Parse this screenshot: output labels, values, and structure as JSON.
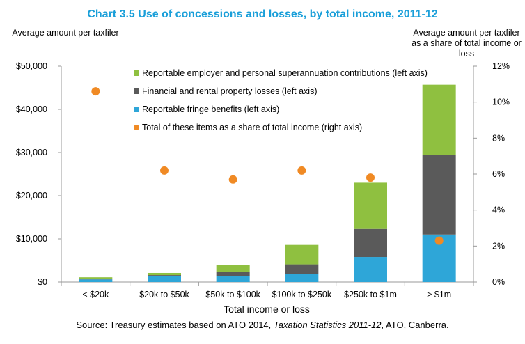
{
  "colors": {
    "title": "#1a9fd9",
    "superannuation": "#8fc040",
    "losses": "#5a5a5a",
    "fringe": "#2ea6d8",
    "share": "#f08a24",
    "axis": "#999999"
  },
  "chart_data": {
    "type": "bar",
    "stacked": true,
    "title": "Chart 3.5 Use of concessions and losses, by total income, 2011-12",
    "ylabel_left": "Average amount per taxfiler",
    "ylabel_right": "Average amount per taxfiler as a share of total income or loss",
    "xlabel": "Total income or loss",
    "categories": [
      "< $20k",
      "$20k to $50k",
      "$50k to $100k",
      "$100k to $250k",
      "$250k to $1m",
      "> $1m"
    ],
    "series": [
      {
        "name": "Reportable fringe benefits (left axis)",
        "axis": "left",
        "values": [
          600,
          1400,
          1300,
          1800,
          5800,
          11000
        ]
      },
      {
        "name": "Financial and rental property losses (left axis)",
        "axis": "left",
        "values": [
          200,
          200,
          1000,
          2300,
          6500,
          18500
        ]
      },
      {
        "name": "Reportable employer and personal superannuation contributions (left axis)",
        "axis": "left",
        "values": [
          300,
          500,
          1600,
          4500,
          10700,
          16200
        ]
      },
      {
        "name": "Total of these items as a share of total income (right axis)",
        "axis": "right",
        "type": "scatter",
        "values": [
          10.6,
          6.2,
          5.7,
          6.2,
          5.8,
          2.3
        ]
      }
    ],
    "legend_order": [
      "Reportable employer and personal superannuation contributions (left axis)",
      "Financial and rental property losses (left axis)",
      "Reportable fringe benefits (left axis)",
      "Total of these items as a share of total income (right axis)"
    ],
    "ylim_left": [
      0,
      50000
    ],
    "ylim_right": [
      0,
      12
    ],
    "yticks_left": [
      "$0",
      "$10,000",
      "$20,000",
      "$30,000",
      "$40,000",
      "$50,000"
    ],
    "yticks_right": [
      "0%",
      "2%",
      "4%",
      "6%",
      "8%",
      "10%",
      "12%"
    ],
    "legend_position": "top-left inside plot",
    "grid": false
  },
  "source": {
    "prefix": "Source: Treasury estimates based on ATO 2014, ",
    "italic": "Taxation Statistics 2011-12",
    "suffix": ", ATO, Canberra."
  }
}
